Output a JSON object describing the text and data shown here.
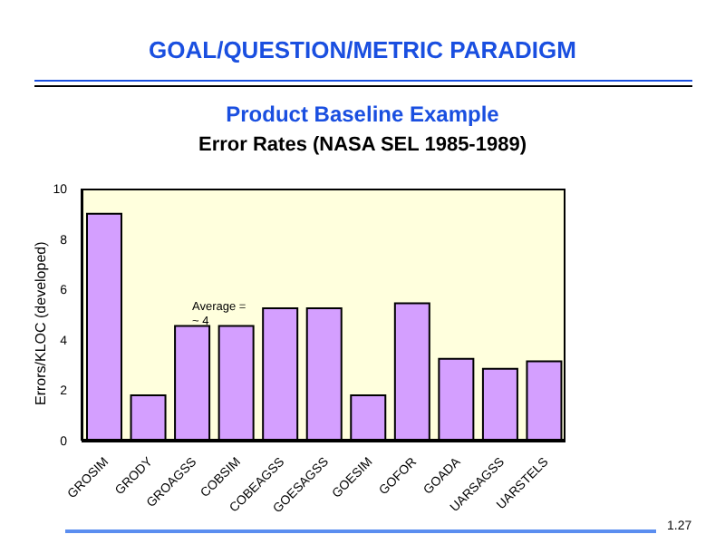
{
  "chart_data": {
    "type": "bar",
    "title": "GOAL/QUESTION/METRIC PARADIGM",
    "subtitle": "Product Baseline Example",
    "xlabel": null,
    "ylabel": "Errors/KLOC (developed)",
    "categories": [
      "GROSIM",
      "GRODY",
      "GROAGSS",
      "COBSIM",
      "COBEAGSS",
      "GOESAGSS",
      "GOESIM",
      "GOFOR",
      "GOADA",
      "UARSAGSS",
      "UARSTELS"
    ],
    "series": [
      {
        "name": "Error Rates (NASA SEL 1985-1989)",
        "color": "#d49fff",
        "values": [
          9.0,
          1.8,
          4.55,
          4.55,
          5.25,
          5.25,
          1.8,
          5.45,
          3.25,
          2.85,
          3.15
        ]
      }
    ],
    "ylim": [
      0,
      10
    ],
    "yticks": [
      0,
      2,
      4,
      6,
      8,
      10
    ],
    "grid": false,
    "annotations": [
      "Average = ~ 4",
      "1.27"
    ]
  }
}
